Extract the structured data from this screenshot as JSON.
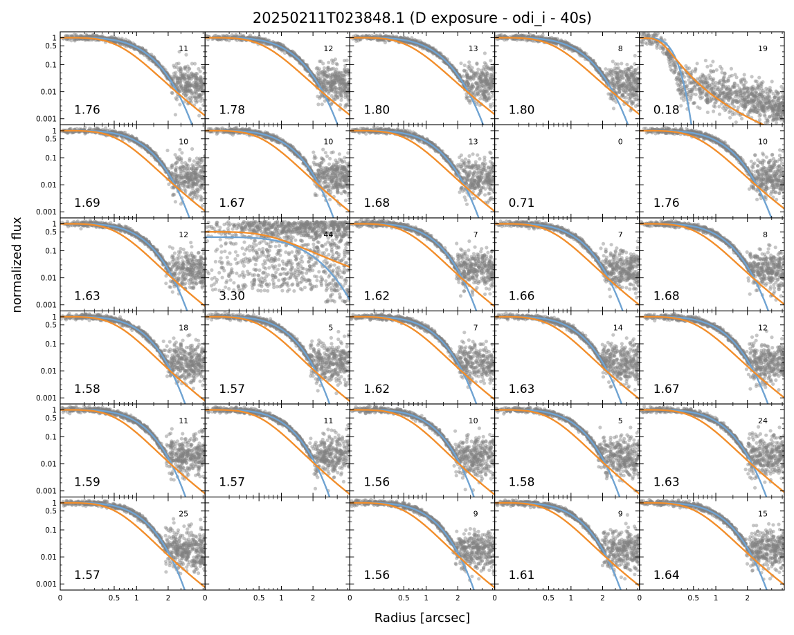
{
  "chart_data": {
    "type": "scatter",
    "title": "20250211T023848.1 (D exposure - odi_i - 40s)",
    "xlabel": "Radius [arcsec]",
    "ylabel": "normalized flux",
    "xscale": "power-0.5",
    "yscale": "log",
    "ylim": [
      0.0008,
      1.3
    ],
    "xticks": [
      0,
      0.5,
      1,
      2
    ],
    "xtick_labels": [
      "0",
      "0.5",
      "1",
      "2"
    ],
    "yticks": [
      1,
      0.5,
      0.1,
      0.01,
      0.001
    ],
    "ytick_labels": [
      "1",
      "0.5",
      "0.1",
      "0.01",
      "0.001"
    ],
    "grid": "6x5",
    "colors": {
      "points": "#808080",
      "fit_gauss": "#6fa3d2",
      "fit_moffat": "#f28e2b"
    },
    "panels": [
      {
        "row": 0,
        "col": 0,
        "fwhm": "1.76",
        "count": "11"
      },
      {
        "row": 0,
        "col": 1,
        "fwhm": "1.78",
        "count": "12"
      },
      {
        "row": 0,
        "col": 2,
        "fwhm": "1.80",
        "count": "13"
      },
      {
        "row": 0,
        "col": 3,
        "fwhm": "1.80",
        "count": "8"
      },
      {
        "row": 0,
        "col": 4,
        "fwhm": "0.18",
        "count": "19",
        "special": "narrow"
      },
      {
        "row": 1,
        "col": 0,
        "fwhm": "1.69",
        "count": "10"
      },
      {
        "row": 1,
        "col": 1,
        "fwhm": "1.67",
        "count": "10"
      },
      {
        "row": 1,
        "col": 2,
        "fwhm": "1.68",
        "count": "13"
      },
      {
        "row": 1,
        "col": 3,
        "fwhm": "0.71",
        "count": "0",
        "special": "empty"
      },
      {
        "row": 1,
        "col": 4,
        "fwhm": "1.76",
        "count": "10"
      },
      {
        "row": 2,
        "col": 0,
        "fwhm": "1.63",
        "count": "12"
      },
      {
        "row": 2,
        "col": 1,
        "fwhm": "3.30",
        "count": "44",
        "special": "broad"
      },
      {
        "row": 2,
        "col": 2,
        "fwhm": "1.62",
        "count": "7"
      },
      {
        "row": 2,
        "col": 3,
        "fwhm": "1.66",
        "count": "7"
      },
      {
        "row": 2,
        "col": 4,
        "fwhm": "1.68",
        "count": "8"
      },
      {
        "row": 3,
        "col": 0,
        "fwhm": "1.58",
        "count": "18"
      },
      {
        "row": 3,
        "col": 1,
        "fwhm": "1.57",
        "count": "5"
      },
      {
        "row": 3,
        "col": 2,
        "fwhm": "1.62",
        "count": "7"
      },
      {
        "row": 3,
        "col": 3,
        "fwhm": "1.63",
        "count": "14"
      },
      {
        "row": 3,
        "col": 4,
        "fwhm": "1.67",
        "count": "12"
      },
      {
        "row": 4,
        "col": 0,
        "fwhm": "1.59",
        "count": "11"
      },
      {
        "row": 4,
        "col": 1,
        "fwhm": "1.57",
        "count": "11"
      },
      {
        "row": 4,
        "col": 2,
        "fwhm": "1.56",
        "count": "10"
      },
      {
        "row": 4,
        "col": 3,
        "fwhm": "1.58",
        "count": "5"
      },
      {
        "row": 4,
        "col": 4,
        "fwhm": "1.63",
        "count": "24"
      },
      {
        "row": 5,
        "col": 0,
        "fwhm": "1.57",
        "count": "25"
      },
      {
        "row": 5,
        "col": 1,
        "fwhm": "",
        "count": "",
        "special": "blank"
      },
      {
        "row": 5,
        "col": 2,
        "fwhm": "1.56",
        "count": "9"
      },
      {
        "row": 5,
        "col": 3,
        "fwhm": "1.61",
        "count": "9"
      },
      {
        "row": 5,
        "col": 4,
        "fwhm": "1.64",
        "count": "15"
      }
    ]
  }
}
